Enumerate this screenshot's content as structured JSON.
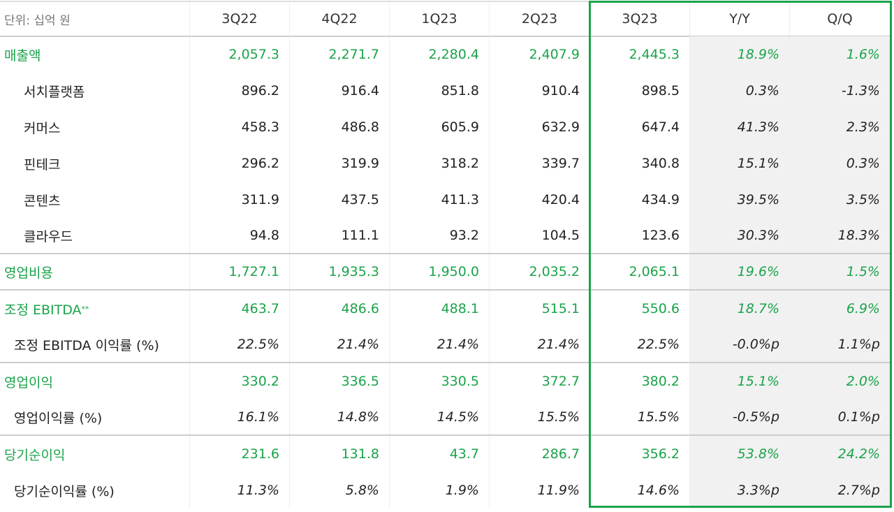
{
  "header": {
    "unit": "단위: 십억 원",
    "columns": [
      "3Q22",
      "4Q22",
      "1Q23",
      "2Q23",
      "3Q23",
      "Y/Y",
      "Q/Q"
    ]
  },
  "table": {
    "highlight_from": 4,
    "shade_from": 5,
    "accent": "#1aa34a",
    "rows": [
      {
        "label": "매출액",
        "kind": "main",
        "italic": false,
        "values": [
          "2,057.3",
          "2,271.7",
          "2,280.4",
          "2,407.9",
          "2,445.3",
          "18.9%",
          "1.6%"
        ]
      },
      {
        "label": "서치플랫폼",
        "kind": "sub",
        "italic": false,
        "values": [
          "896.2",
          "916.4",
          "851.8",
          "910.4",
          "898.5",
          "0.3%",
          "-1.3%"
        ]
      },
      {
        "label": "커머스",
        "kind": "sub",
        "italic": false,
        "values": [
          "458.3",
          "486.8",
          "605.9",
          "632.9",
          "647.4",
          "41.3%",
          "2.3%"
        ]
      },
      {
        "label": "핀테크",
        "kind": "sub",
        "italic": false,
        "values": [
          "296.2",
          "319.9",
          "318.2",
          "339.7",
          "340.8",
          "15.1%",
          "0.3%"
        ]
      },
      {
        "label": "콘텐츠",
        "kind": "sub",
        "italic": false,
        "values": [
          "311.9",
          "437.5",
          "411.3",
          "420.4",
          "434.9",
          "39.5%",
          "3.5%"
        ]
      },
      {
        "label": "클라우드",
        "kind": "sub",
        "italic": false,
        "values": [
          "94.8",
          "111.1",
          "93.2",
          "104.5",
          "123.6",
          "30.3%",
          "18.3%"
        ]
      },
      {
        "label": "영업비용",
        "kind": "main",
        "italic": false,
        "values": [
          "1,727.1",
          "1,935.3",
          "1,950.0",
          "2,035.2",
          "2,065.1",
          "19.6%",
          "1.5%"
        ]
      },
      {
        "label": "조정 EBITDA",
        "sup": "**",
        "kind": "main",
        "italic": false,
        "values": [
          "463.7",
          "486.6",
          "488.1",
          "515.1",
          "550.6",
          "18.7%",
          "6.9%"
        ]
      },
      {
        "label": "조정 EBITDA 이익률 (%)",
        "kind": "sub2",
        "italic": true,
        "values": [
          "22.5%",
          "21.4%",
          "21.4%",
          "21.4%",
          "22.5%",
          "-0.0%p",
          "1.1%p"
        ]
      },
      {
        "label": "영업이익",
        "kind": "main",
        "italic": false,
        "values": [
          "330.2",
          "336.5",
          "330.5",
          "372.7",
          "380.2",
          "15.1%",
          "2.0%"
        ]
      },
      {
        "label": "영업이익률 (%)",
        "kind": "sub2",
        "italic": true,
        "values": [
          "16.1%",
          "14.8%",
          "14.5%",
          "15.5%",
          "15.5%",
          "-0.5%p",
          "0.1%p"
        ]
      },
      {
        "label": "당기순이익",
        "kind": "main",
        "italic": false,
        "values": [
          "231.6",
          "131.8",
          "43.7",
          "286.7",
          "356.2",
          "53.8%",
          "24.2%"
        ]
      },
      {
        "label": "당기순이익률 (%)",
        "kind": "sub2",
        "italic": true,
        "values": [
          "11.3%",
          "5.8%",
          "1.9%",
          "11.9%",
          "14.6%",
          "3.3%p",
          "2.7%p"
        ]
      }
    ]
  }
}
